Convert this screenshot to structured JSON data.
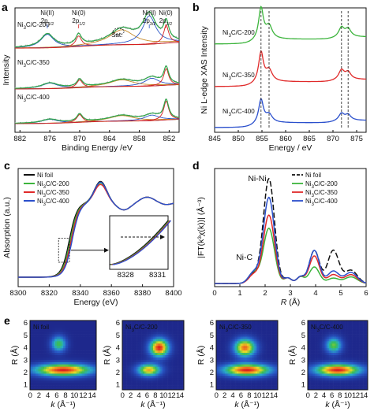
{
  "chart_data": [
    {
      "panel": "a",
      "type": "line",
      "xlabel": "Binding Energy /eV",
      "ylabel": "Intensity",
      "xlim": [
        883,
        850
      ],
      "xticks": [
        882,
        876,
        870,
        864,
        858,
        852
      ],
      "annotations": [
        {
          "text": "Ni(II)",
          "sub": "2p1/2",
          "x": 876.5,
          "color": "#2a56c6"
        },
        {
          "text": "Ni(0)",
          "sub": "2p1/2",
          "x": 870.2,
          "color": "#d62020"
        },
        {
          "text": "Ni(II)",
          "sub": "2p3/2",
          "x": 856.0,
          "color": "#2a56c6"
        },
        {
          "text": "Ni(0)",
          "sub": "2p3/2",
          "x": 852.7,
          "color": "#d62020"
        },
        {
          "text": "Sat.",
          "x": 862.5,
          "color": "#111"
        }
      ],
      "series": [
        {
          "name": "Ni3C/C-200",
          "label_main": "Ni",
          "label_sub": "3",
          "label_rest": "C/C-200",
          "peaks": [
            [
              876.5,
              0.45,
              1.6
            ],
            [
              870.2,
              0.35,
              0.7
            ],
            [
              861.5,
              0.5,
              3.0
            ],
            [
              856.0,
              0.95,
              1.6
            ],
            [
              852.6,
              0.6,
              0.6
            ]
          ]
        },
        {
          "name": "Ni3C/C-350",
          "label_main": "Ni",
          "label_sub": "3",
          "label_rest": "C/C-350",
          "peaks": [
            [
              876.0,
              0.25,
              2.0
            ],
            [
              870.0,
              0.35,
              0.7
            ],
            [
              861.5,
              0.3,
              3.0
            ],
            [
              855.5,
              0.35,
              1.8
            ],
            [
              852.6,
              0.75,
              0.6
            ]
          ]
        },
        {
          "name": "Ni3C/C-400",
          "label_main": "Ni",
          "label_sub": "3",
          "label_rest": "C/C-400",
          "peaks": [
            [
              876.0,
              0.18,
              2.0
            ],
            [
              870.0,
              0.35,
              0.7
            ],
            [
              861.5,
              0.25,
              3.0
            ],
            [
              855.5,
              0.25,
              1.8
            ],
            [
              852.6,
              0.85,
              0.6
            ]
          ]
        }
      ]
    },
    {
      "panel": "b",
      "type": "line",
      "xlabel": "Energy / eV",
      "ylabel": "Ni L-edge XAS Intensity",
      "xlim": [
        845,
        877
      ],
      "xticks": [
        845,
        850,
        855,
        860,
        865,
        870,
        875
      ],
      "dashed_x": [
        854.8,
        856.5,
        871.8,
        873.2
      ],
      "series": [
        {
          "name": "Ni3C/C-200",
          "label_main": "Ni",
          "label_sub": "3",
          "label_rest": "C/C-200",
          "color": "#3cb43c"
        },
        {
          "name": "Ni3C/C-350",
          "label_main": "Ni",
          "label_sub": "3",
          "label_rest": "C/C-350",
          "color": "#e02a2a"
        },
        {
          "name": "Ni3C/C-400",
          "label_main": "Ni",
          "label_sub": "3",
          "label_rest": "C/C-400",
          "color": "#2a4fcc"
        }
      ]
    },
    {
      "panel": "c",
      "type": "line",
      "xlabel": "Energy (eV)",
      "ylabel": "Absorption (a.u.)",
      "xlim": [
        8300,
        8400
      ],
      "xticks": [
        8300,
        8320,
        8340,
        8360,
        8380,
        8400
      ],
      "inset_xticks": [
        8328,
        8331
      ],
      "series": [
        {
          "name": "Ni foil",
          "color": "#111111"
        },
        {
          "name": "Ni3C/C-200",
          "label_main": "Ni",
          "label_sub": "3",
          "label_rest": "C/C-200",
          "color": "#3cb43c"
        },
        {
          "name": "Ni3C/C-350",
          "label_main": "Ni",
          "label_sub": "3",
          "label_rest": "C/C-350",
          "color": "#e02a2a"
        },
        {
          "name": "Ni3C/C-400",
          "label_main": "Ni",
          "label_sub": "3",
          "label_rest": "C/C-400",
          "color": "#2a4fcc"
        }
      ]
    },
    {
      "panel": "d",
      "type": "line",
      "xlabel_main": "R",
      "xlabel_rest": " (Å)",
      "ylabel": "|FT(k³χ(k))| (Å⁻³)",
      "xlim": [
        0,
        6
      ],
      "xticks": [
        0,
        1,
        2,
        3,
        4,
        5,
        6
      ],
      "annotations": [
        {
          "text": "Ni-Ni",
          "x": 2.0
        },
        {
          "text": "Ni-C",
          "x": 1.3
        }
      ],
      "series": [
        {
          "name": "Ni foil",
          "color": "#111111",
          "dashed": true
        },
        {
          "name": "Ni3C/C-200",
          "label_main": "Ni",
          "label_sub": "3",
          "label_rest": "C/C-200",
          "color": "#3cb43c"
        },
        {
          "name": "Ni3C/C-350",
          "label_main": "Ni",
          "label_sub": "3",
          "label_rest": "C/C-350",
          "color": "#e02a2a"
        },
        {
          "name": "Ni3C/C-400",
          "label_main": "Ni",
          "label_sub": "3",
          "label_rest": "C/C-400",
          "color": "#2a4fcc"
        }
      ]
    },
    {
      "panel": "e",
      "type": "heatmap",
      "xlabel_main": "k",
      "xlabel_rest": " (Å⁻¹)",
      "ylabel": "R (Å)",
      "xticks": [
        "0",
        "2",
        "4",
        "6",
        "8",
        "10",
        "12",
        "14"
      ],
      "yticks": [
        "1",
        "2",
        "3",
        "4",
        "5",
        "6"
      ],
      "maps": [
        {
          "name": "Ni foil",
          "label_main": "Ni foil",
          "label_sub": "",
          "label_rest": "",
          "blobs": [
            [
              7.5,
              2.2,
              4.5,
              0.35,
              1.0
            ],
            [
              6.5,
              4.3,
              1.2,
              0.45,
              0.55
            ]
          ]
        },
        {
          "name": "Ni3C/C-200",
          "label_main": "Ni",
          "label_sub": "3",
          "label_rest": "C/C-200",
          "blobs": [
            [
              6.5,
              2.2,
              2.0,
              0.35,
              0.8
            ],
            [
              9.0,
              4.0,
              1.6,
              0.5,
              1.0
            ]
          ]
        },
        {
          "name": "Ni3C/C-350",
          "label_main": "Ni",
          "label_sub": "3",
          "label_rest": "C/C-350",
          "blobs": [
            [
              7.5,
              2.2,
              4.0,
              0.35,
              1.0
            ],
            [
              7.0,
              4.0,
              1.8,
              0.5,
              0.9
            ]
          ]
        },
        {
          "name": "Ni3C/C-400",
          "label_main": "Ni",
          "label_sub": "3",
          "label_rest": "C/C-400",
          "blobs": [
            [
              7.5,
              2.2,
              4.0,
              0.35,
              1.0
            ],
            [
              6.5,
              4.2,
              1.4,
              0.45,
              0.6
            ]
          ]
        }
      ]
    }
  ],
  "panels": {
    "a": "a",
    "b": "b",
    "c": "c",
    "d": "d",
    "e": "e"
  }
}
